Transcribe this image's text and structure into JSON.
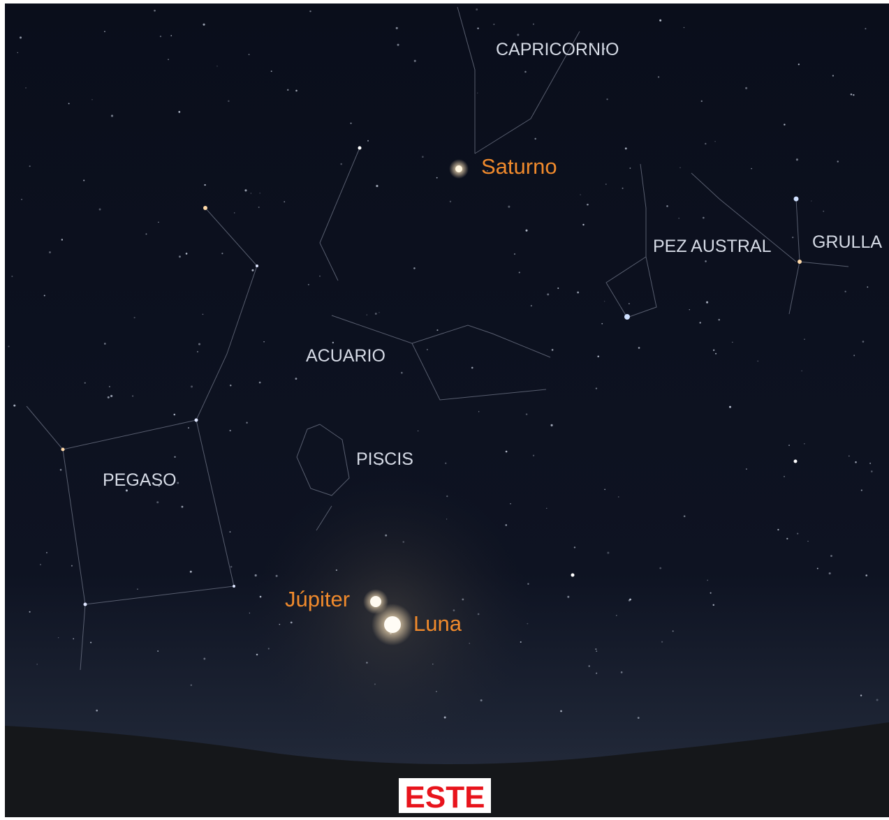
{
  "constellations": [
    "CAPRICORNIO",
    "PEZ AUSTRAL",
    "GRULLA",
    "ACUARIO",
    "PISCIS",
    "PEGASO"
  ],
  "planets": [
    "Saturno",
    "Júpiter",
    "Luna"
  ],
  "direction": "ESTE"
}
